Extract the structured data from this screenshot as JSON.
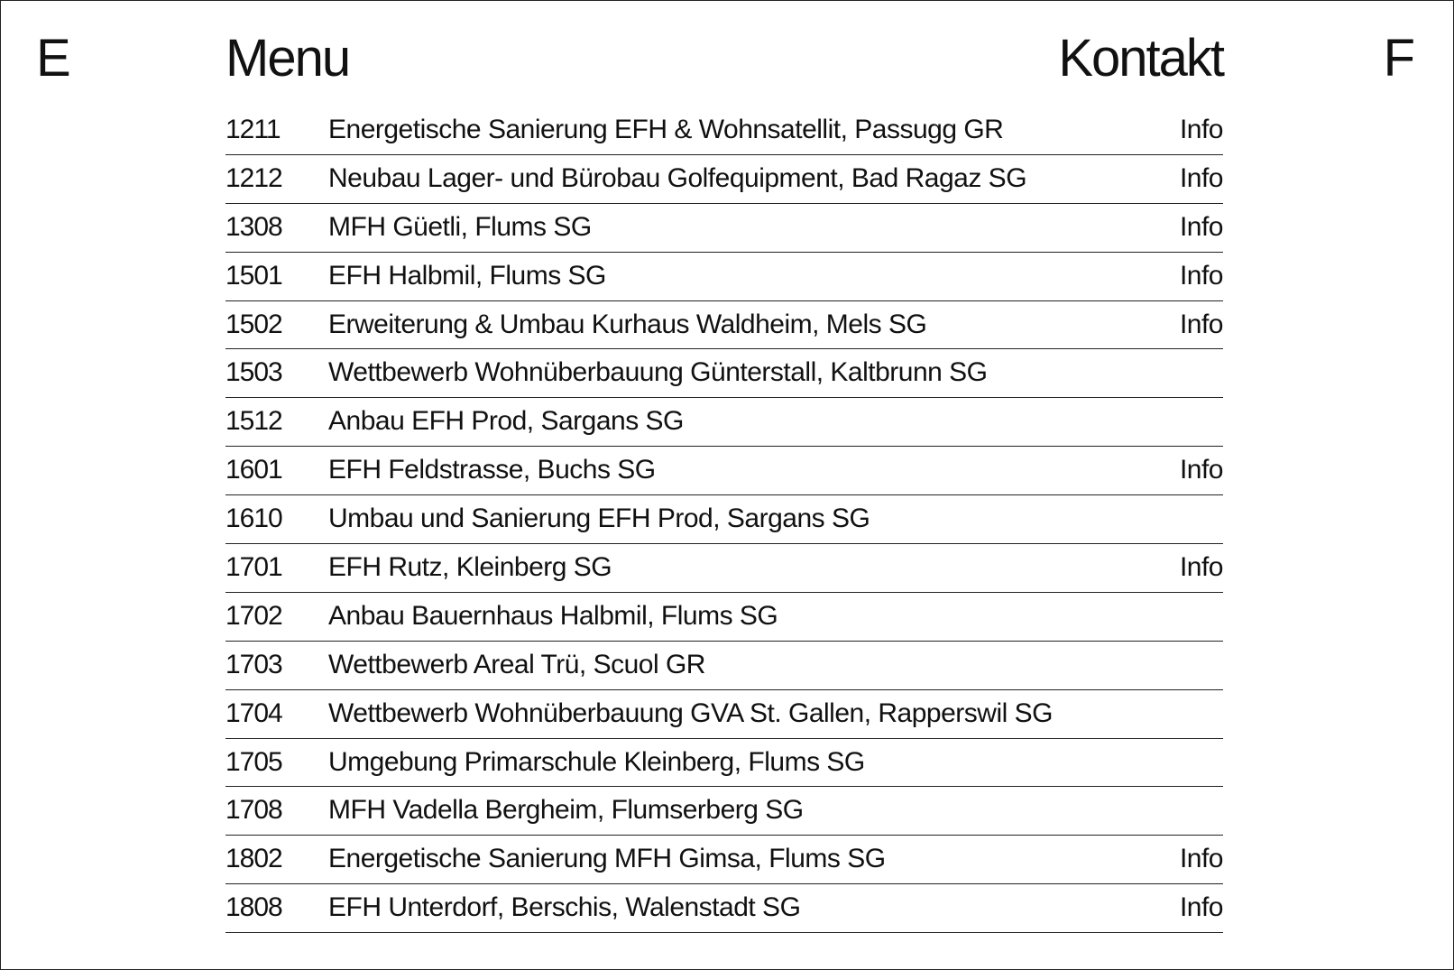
{
  "corners": {
    "left": "E",
    "right": "F"
  },
  "header": {
    "menu_label": "Menu",
    "contact_label": "Kontakt"
  },
  "projects": [
    {
      "number": "1211",
      "title": "Energetische Sanierung EFH & Wohnsatellit, Passugg GR",
      "info": "Info"
    },
    {
      "number": "1212",
      "title": "Neubau Lager- und Bürobau Golfequipment, Bad Ragaz SG",
      "info": "Info"
    },
    {
      "number": "1308",
      "title": "MFH Güetli, Flums SG",
      "info": "Info"
    },
    {
      "number": "1501",
      "title": "EFH Halbmil, Flums SG",
      "info": "Info"
    },
    {
      "number": "1502",
      "title": "Erweiterung & Umbau Kurhaus Waldheim, Mels SG",
      "info": "Info"
    },
    {
      "number": "1503",
      "title": "Wettbewerb Wohnüberbauung Günterstall, Kaltbrunn SG",
      "info": ""
    },
    {
      "number": "1512",
      "title": "Anbau EFH Prod, Sargans SG",
      "info": ""
    },
    {
      "number": "1601",
      "title": "EFH Feldstrasse, Buchs SG",
      "info": "Info"
    },
    {
      "number": "1610",
      "title": "Umbau und Sanierung EFH Prod, Sargans SG",
      "info": ""
    },
    {
      "number": "1701",
      "title": "EFH Rutz, Kleinberg SG",
      "info": "Info"
    },
    {
      "number": "1702",
      "title": "Anbau Bauernhaus Halbmil, Flums SG",
      "info": ""
    },
    {
      "number": "1703",
      "title": "Wettbewerb Areal Trü, Scuol GR",
      "info": ""
    },
    {
      "number": "1704",
      "title": "Wettbewerb Wohnüberbauung GVA St. Gallen, Rapperswil SG",
      "info": ""
    },
    {
      "number": "1705",
      "title": "Umgebung Primarschule Kleinberg, Flums SG",
      "info": ""
    },
    {
      "number": "1708",
      "title": "MFH Vadella Bergheim, Flumserberg SG",
      "info": ""
    },
    {
      "number": "1802",
      "title": "Energetische Sanierung MFH Gimsa, Flums SG",
      "info": "Info"
    },
    {
      "number": "1808",
      "title": "EFH Unterdorf, Berschis, Walenstadt SG",
      "info": "Info"
    }
  ]
}
